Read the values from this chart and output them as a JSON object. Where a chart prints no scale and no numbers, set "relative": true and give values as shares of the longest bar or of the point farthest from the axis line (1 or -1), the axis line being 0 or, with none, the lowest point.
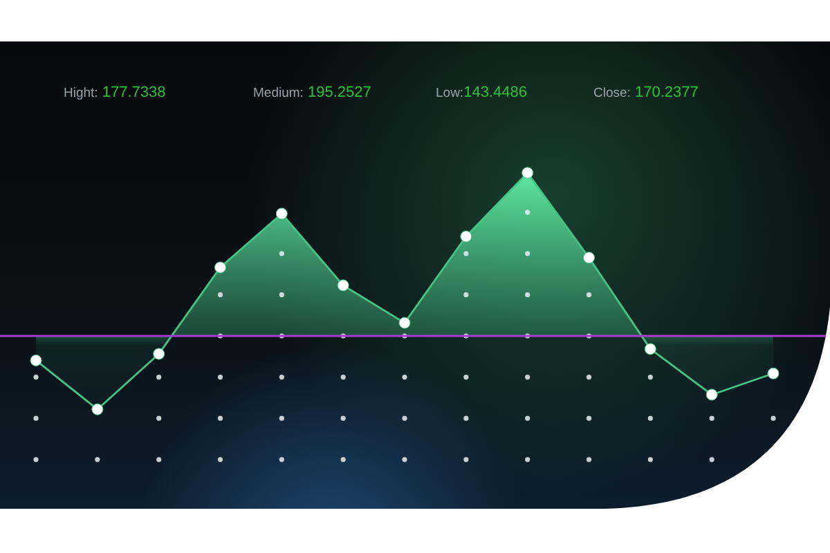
{
  "chart_data": {
    "type": "area",
    "relative": true,
    "categories": [
      null,
      null,
      null,
      null,
      null,
      null,
      null,
      null,
      null,
      null,
      null,
      null,
      null
    ],
    "series": [
      {
        "color": "#45c486",
        "values": [
          -0.15,
          -0.45,
          -0.11,
          0.42,
          0.75,
          0.31,
          0.08,
          0.61,
          1,
          0.48,
          -0.08,
          -0.36,
          -0.23
        ]
      }
    ],
    "marker": "circle",
    "ref_lines": [
      {
        "axis": "y",
        "value": 0,
        "color": "#a83ccf"
      }
    ],
    "annotations": [
      "Hight: 177.7338",
      "Medium: 195.2527",
      "Low:143.4486",
      "Close: 170.2377"
    ]
  }
}
